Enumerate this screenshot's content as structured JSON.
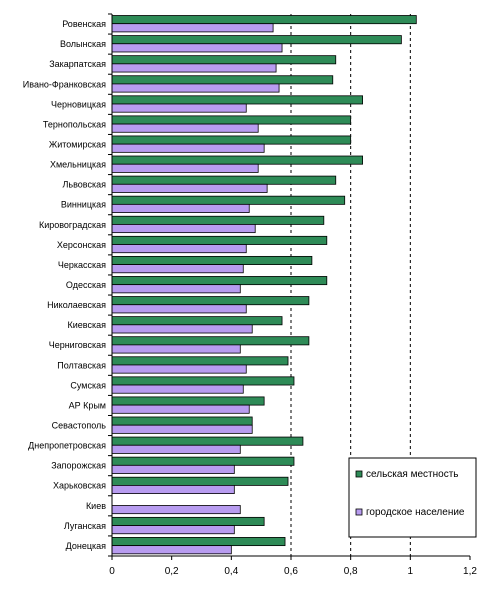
{
  "chart_data": {
    "type": "bar",
    "orientation": "horizontal",
    "title": "",
    "xlabel": "",
    "ylabel": "",
    "xlim": [
      0,
      1.2
    ],
    "xticks": [
      "0",
      "0,2",
      "0,4",
      "0,6",
      "0,8",
      "1",
      "1,2"
    ],
    "grid": "dashed vertical lines at 0.6, 0.8, 1.0",
    "legend_position": "bottom-right",
    "categories": [
      "Ровенская",
      "Волынская",
      "Закарпатская",
      "Ивано-Франковская",
      "Черновицкая",
      "Тернопольская",
      "Житомирская",
      "Хмельницкая",
      "Львовская",
      "Винницкая",
      "Кировоградская",
      "Херсонская",
      "Черкасская",
      "Одесская",
      "Николаевская",
      "Киевская",
      "Черниговская",
      "Полтавская",
      "Сумская",
      "АР Крым",
      "Севастополь",
      "Днепропетровская",
      "Запорожская",
      "Харьковская",
      "Киев",
      "Луганская",
      "Донецкая"
    ],
    "series": [
      {
        "name": "сельская местность",
        "color": "#2e8b57",
        "values": [
          1.02,
          0.97,
          0.75,
          0.74,
          0.84,
          0.8,
          0.8,
          0.84,
          0.75,
          0.78,
          0.71,
          0.72,
          0.67,
          0.72,
          0.66,
          0.57,
          0.66,
          0.59,
          0.61,
          0.51,
          0.47,
          0.64,
          0.61,
          0.59,
          null,
          0.51,
          0.58
        ]
      },
      {
        "name": "городское население",
        "color": "#b89cf0",
        "values": [
          0.54,
          0.57,
          0.55,
          0.56,
          0.45,
          0.49,
          0.51,
          0.49,
          0.52,
          0.46,
          0.48,
          0.45,
          0.44,
          0.43,
          0.45,
          0.47,
          0.43,
          0.45,
          0.44,
          0.46,
          0.47,
          0.43,
          0.41,
          0.41,
          0.43,
          0.41,
          0.4
        ]
      }
    ]
  }
}
